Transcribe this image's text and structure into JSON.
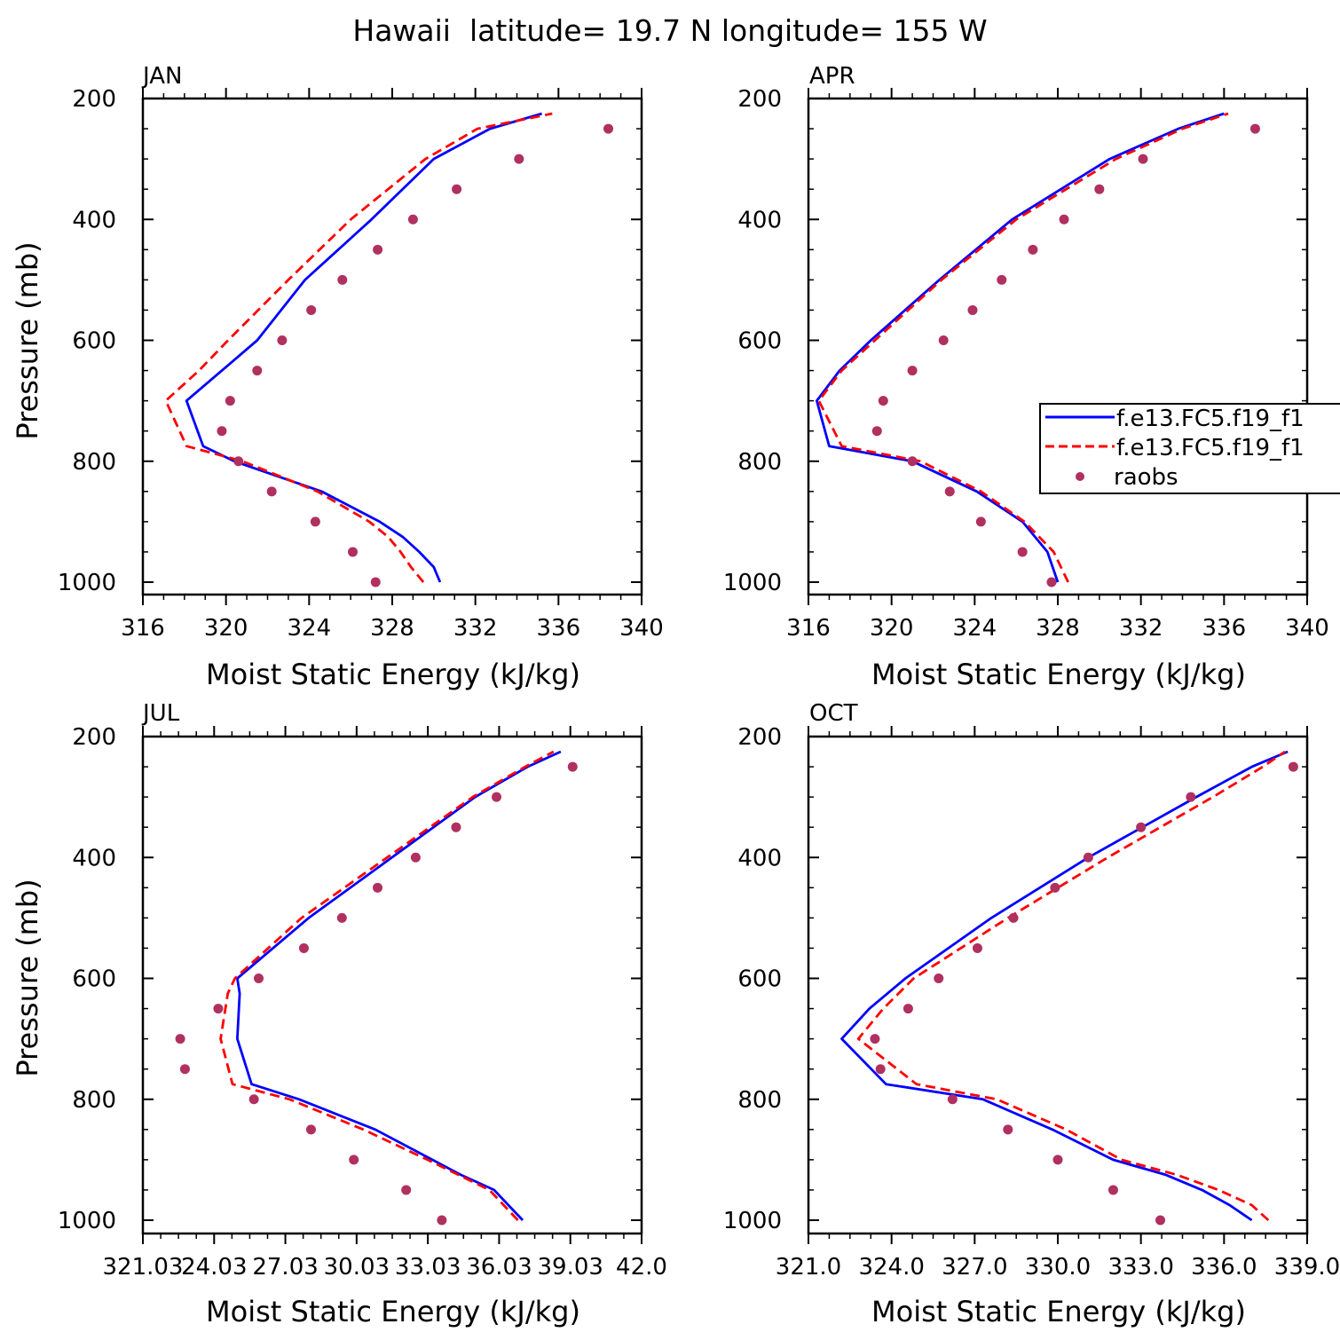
{
  "figure": {
    "title": "Hawaii  latitude= 19.7 N longitude= 155 W"
  },
  "legend": {
    "entries": [
      {
        "label": "f.e13.FC5.f19_f1",
        "style": "solid",
        "color": "#0000ff"
      },
      {
        "label": "f.e13.FC5.f19_f1",
        "style": "dashed",
        "color": "#ff0000"
      },
      {
        "label": "raobs",
        "style": "marker",
        "color": "#b03060"
      }
    ]
  },
  "colors": {
    "model_solid": "#0000ff",
    "model_dashed": "#ff0000",
    "raobs": "#b03060"
  },
  "chart_data": [
    {
      "type": "line",
      "panel": "JAN",
      "xlabel": "Moist Static Energy (kJ/kg)",
      "ylabel": "Pressure (mb)",
      "xlim": [
        316,
        340
      ],
      "ylim": [
        1000,
        200
      ],
      "xticks": [
        316,
        320,
        324,
        328,
        332,
        336,
        340
      ],
      "xtick_labels": [
        "316",
        "320",
        "324",
        "328",
        "332",
        "336",
        "340"
      ],
      "yticks": [
        200,
        400,
        600,
        800,
        1000
      ],
      "ytick_labels": [
        "200",
        "400",
        "600",
        "800",
        "1000"
      ],
      "series": [
        {
          "name": "f.e13.FC5.f19_f1 (solid)",
          "style": "solid",
          "p": [
            1000,
            975,
            950,
            925,
            900,
            850,
            800,
            775,
            700,
            650,
            600,
            500,
            400,
            300,
            250,
            225
          ],
          "x": [
            330.3,
            330.0,
            329.3,
            328.5,
            327.4,
            324.6,
            320.4,
            318.9,
            318.1,
            319.8,
            321.5,
            323.8,
            327.0,
            330.0,
            332.7,
            335.2
          ]
        },
        {
          "name": "f.e13.FC5.f19_f1 (dashed)",
          "style": "dashed",
          "p": [
            1000,
            975,
            950,
            925,
            900,
            850,
            800,
            775,
            700,
            650,
            600,
            500,
            400,
            300,
            250,
            225
          ],
          "x": [
            329.5,
            328.9,
            328.4,
            327.8,
            326.9,
            324.4,
            320.8,
            318.1,
            317.1,
            318.7,
            320.1,
            323.0,
            326.0,
            329.6,
            332.1,
            335.7
          ]
        },
        {
          "name": "raobs",
          "style": "marker",
          "p": [
            1000,
            950,
            900,
            850,
            800,
            750,
            700,
            650,
            600,
            550,
            500,
            450,
            400,
            350,
            300,
            250
          ],
          "x": [
            327.2,
            326.1,
            324.3,
            322.2,
            320.6,
            319.8,
            320.2,
            321.5,
            322.7,
            324.1,
            325.6,
            327.3,
            329.0,
            331.1,
            334.1,
            338.4
          ]
        }
      ]
    },
    {
      "type": "line",
      "panel": "APR",
      "xlabel": "Moist Static Energy (kJ/kg)",
      "ylabel": "",
      "xlim": [
        316,
        340
      ],
      "ylim": [
        1000,
        200
      ],
      "xticks": [
        316,
        320,
        324,
        328,
        332,
        336,
        340
      ],
      "xtick_labels": [
        "316",
        "320",
        "324",
        "328",
        "332",
        "336",
        "340"
      ],
      "yticks": [
        200,
        400,
        600,
        800,
        1000
      ],
      "ytick_labels": [
        "200",
        "400",
        "600",
        "800",
        "1000"
      ],
      "series": [
        {
          "name": "f.e13.FC5.f19_f1 (solid)",
          "style": "solid",
          "p": [
            1000,
            950,
            900,
            850,
            800,
            775,
            700,
            650,
            600,
            500,
            400,
            300,
            250,
            225
          ],
          "x": [
            328.0,
            327.5,
            326.3,
            324.1,
            321.0,
            317.0,
            316.4,
            317.5,
            319.0,
            322.3,
            325.8,
            330.5,
            333.8,
            336.0
          ]
        },
        {
          "name": "f.e13.FC5.f19_f1 (dashed)",
          "style": "dashed",
          "p": [
            1000,
            950,
            900,
            850,
            800,
            775,
            700,
            650,
            600,
            500,
            400,
            300,
            250,
            225
          ],
          "x": [
            328.5,
            327.8,
            326.4,
            324.3,
            321.4,
            317.6,
            316.5,
            317.6,
            319.2,
            322.4,
            326.0,
            330.8,
            334.0,
            336.2
          ]
        },
        {
          "name": "raobs",
          "style": "marker",
          "p": [
            1000,
            950,
            900,
            850,
            800,
            750,
            700,
            650,
            600,
            550,
            500,
            450,
            400,
            350,
            300,
            250
          ],
          "x": [
            327.7,
            326.3,
            324.3,
            322.8,
            321.0,
            319.3,
            319.6,
            321.0,
            322.5,
            323.9,
            325.3,
            326.8,
            328.3,
            330.0,
            332.1,
            337.5
          ]
        }
      ]
    },
    {
      "type": "line",
      "panel": "JUL",
      "xlabel": "Moist Static Energy (kJ/kg)",
      "ylabel": "Pressure (mb)",
      "xlim": [
        321.03,
        342.0
      ],
      "ylim": [
        1000,
        200
      ],
      "xticks": [
        321.03,
        324.03,
        327.03,
        330.03,
        333.03,
        336.03,
        339.03,
        342.0
      ],
      "xtick_labels": [
        "321.03",
        "24.03",
        "27.03",
        "30.03",
        "33.03",
        "36.03",
        "39.03",
        "42.0"
      ],
      "series": [
        {
          "name": "f.e13.FC5.f19_f1 (solid)",
          "style": "solid",
          "p": [
            1000,
            975,
            950,
            925,
            900,
            850,
            800,
            775,
            700,
            625,
            600,
            500,
            400,
            300,
            250,
            225
          ],
          "x": [
            337.0,
            336.4,
            335.8,
            334.4,
            333.2,
            330.8,
            327.6,
            325.6,
            325.0,
            325.1,
            325.0,
            328.0,
            331.5,
            335.0,
            337.2,
            338.6
          ]
        },
        {
          "name": "f.e13.FC5.f19_f1 (dashed)",
          "style": "dashed",
          "p": [
            1000,
            975,
            950,
            925,
            900,
            850,
            800,
            775,
            700,
            625,
            600,
            500,
            400,
            300,
            250,
            225
          ],
          "x": [
            336.8,
            336.2,
            335.6,
            334.3,
            333.0,
            330.3,
            327.2,
            324.8,
            324.3,
            324.6,
            324.9,
            327.7,
            331.3,
            334.9,
            337.1,
            338.3
          ]
        },
        {
          "name": "raobs",
          "style": "marker",
          "p": [
            1000,
            950,
            900,
            850,
            800,
            750,
            700,
            650,
            600,
            550,
            500,
            450,
            400,
            350,
            300,
            250
          ],
          "x": [
            333.6,
            332.1,
            329.9,
            328.1,
            325.7,
            322.8,
            322.6,
            324.2,
            325.9,
            327.8,
            329.4,
            330.9,
            332.5,
            334.2,
            335.9,
            339.1
          ]
        }
      ],
      "yticks": [
        200,
        400,
        600,
        800,
        1000
      ],
      "ytick_labels": [
        "200",
        "400",
        "600",
        "800",
        "1000"
      ]
    },
    {
      "type": "line",
      "panel": "OCT",
      "xlabel": "Moist Static Energy (kJ/kg)",
      "ylabel": "",
      "xlim": [
        321.0,
        339.0
      ],
      "ylim": [
        1000,
        200
      ],
      "xticks": [
        321.0,
        324.0,
        327.0,
        330.0,
        333.0,
        336.0,
        339.0
      ],
      "xtick_labels": [
        "321.0",
        "324.0",
        "327.0",
        "330.0",
        "333.0",
        "336.0",
        "339.0"
      ],
      "series": [
        {
          "name": "f.e13.FC5.f19_f1 (solid)",
          "style": "solid",
          "p": [
            1000,
            975,
            950,
            925,
            900,
            850,
            800,
            775,
            700,
            650,
            600,
            500,
            400,
            300,
            250,
            225
          ],
          "x": [
            337.0,
            336.2,
            335.2,
            333.9,
            332.0,
            329.8,
            327.3,
            323.8,
            322.2,
            323.2,
            324.5,
            327.6,
            331.1,
            335.0,
            337.0,
            338.3
          ]
        },
        {
          "name": "f.e13.FC5.f19_f1 (dashed)",
          "style": "dashed",
          "p": [
            1000,
            975,
            950,
            925,
            900,
            850,
            800,
            775,
            700,
            650,
            600,
            500,
            400,
            300,
            250,
            225
          ],
          "x": [
            337.6,
            337.0,
            335.8,
            334.3,
            332.3,
            330.3,
            327.8,
            324.9,
            322.8,
            323.7,
            324.8,
            328.2,
            331.8,
            335.6,
            337.4,
            338.2
          ]
        },
        {
          "name": "raobs",
          "style": "marker",
          "p": [
            1000,
            950,
            900,
            850,
            800,
            750,
            700,
            650,
            600,
            550,
            500,
            450,
            400,
            350,
            300,
            250
          ],
          "x": [
            333.7,
            332.0,
            330.0,
            328.2,
            326.2,
            323.6,
            323.4,
            324.6,
            325.7,
            327.1,
            328.4,
            329.9,
            331.1,
            333.0,
            334.8,
            338.5
          ]
        }
      ],
      "yticks": [
        200,
        400,
        600,
        800,
        1000
      ],
      "ytick_labels": [
        "200",
        "400",
        "600",
        "800",
        "1000"
      ]
    }
  ]
}
